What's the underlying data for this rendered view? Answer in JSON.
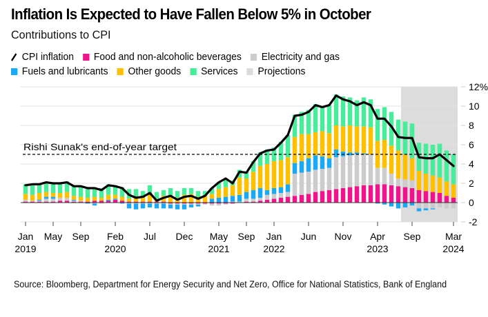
{
  "header": {
    "title": "Inflation Is Expected to Have Fallen Below 5% in October",
    "subtitle": "Contributions to CPI"
  },
  "legend": [
    {
      "key": "cpi",
      "label": "CPI inflation",
      "type": "line",
      "color": "#000000"
    },
    {
      "key": "food",
      "label": "Food and non-alcoholic beverages",
      "type": "box",
      "color": "#f0148c"
    },
    {
      "key": "elec",
      "label": "Electricity and gas",
      "type": "box",
      "color": "#cccccc"
    },
    {
      "key": "fuel",
      "label": "Fuels and lubricants",
      "type": "box",
      "color": "#1ba9f5"
    },
    {
      "key": "other",
      "label": "Other goods",
      "type": "box",
      "color": "#ffc000"
    },
    {
      "key": "services",
      "label": "Services",
      "type": "box",
      "color": "#49ec9a"
    },
    {
      "key": "proj",
      "label": "Projections",
      "type": "box",
      "color": "#dcdcdc"
    }
  ],
  "source": "Source: Bloomberg, Department for Energy Security and Net Zero, Office for National Statistics, Bank of England",
  "chart_data": {
    "type": "bar",
    "stacked": true,
    "title": "Inflation Is Expected to Have Fallen Below 5% in October",
    "subtitle": "Contributions to CPI",
    "xlabel": "",
    "ylabel": "",
    "ylim": [
      -2,
      12
    ],
    "y_ticks": [
      "12%",
      "10",
      "8",
      "6",
      "4",
      "2",
      "0",
      "-2"
    ],
    "y_tick_values": [
      12,
      10,
      8,
      6,
      4,
      2,
      0,
      -2
    ],
    "grid": true,
    "legend_position": "top-left",
    "x_ticks": [
      {
        "index": 0,
        "month": "Jan",
        "year": "2019"
      },
      {
        "index": 4,
        "month": "May",
        "year": ""
      },
      {
        "index": 8,
        "month": "Sep",
        "year": ""
      },
      {
        "index": 13,
        "month": "Feb",
        "year": "2020"
      },
      {
        "index": 18,
        "month": "Jul",
        "year": ""
      },
      {
        "index": 23,
        "month": "Dec",
        "year": ""
      },
      {
        "index": 28,
        "month": "May",
        "year": "2021"
      },
      {
        "index": 32,
        "month": "Sep",
        "year": ""
      },
      {
        "index": 36,
        "month": "Jan",
        "year": "2022"
      },
      {
        "index": 41,
        "month": "Jun",
        "year": ""
      },
      {
        "index": 46,
        "month": "Nov",
        "year": ""
      },
      {
        "index": 51,
        "month": "Apr",
        "year": "2023"
      },
      {
        "index": 56,
        "month": "Sep",
        "year": ""
      },
      {
        "index": 62,
        "month": "Mar",
        "year": "2024"
      }
    ],
    "categories": [
      "2019-01",
      "2019-02",
      "2019-03",
      "2019-04",
      "2019-05",
      "2019-06",
      "2019-07",
      "2019-08",
      "2019-09",
      "2019-10",
      "2019-11",
      "2019-12",
      "2020-01",
      "2020-02",
      "2020-03",
      "2020-04",
      "2020-05",
      "2020-06",
      "2020-07",
      "2020-08",
      "2020-09",
      "2020-10",
      "2020-11",
      "2020-12",
      "2021-01",
      "2021-02",
      "2021-03",
      "2021-04",
      "2021-05",
      "2021-06",
      "2021-07",
      "2021-08",
      "2021-09",
      "2021-10",
      "2021-11",
      "2021-12",
      "2022-01",
      "2022-02",
      "2022-03",
      "2022-04",
      "2022-05",
      "2022-06",
      "2022-07",
      "2022-08",
      "2022-09",
      "2022-10",
      "2022-11",
      "2022-12",
      "2023-01",
      "2023-02",
      "2023-03",
      "2023-04",
      "2023-05",
      "2023-06",
      "2023-07",
      "2023-08",
      "2023-09",
      "2023-10",
      "2023-11",
      "2023-12",
      "2024-01",
      "2024-02",
      "2024-03"
    ],
    "projection_start_index": 55,
    "target": {
      "label": "Rishi Sunak's end-of-year target",
      "value": 5
    },
    "line": {
      "name": "CPI inflation",
      "values": [
        1.8,
        1.9,
        1.9,
        2.1,
        2.0,
        2.0,
        2.1,
        1.7,
        1.7,
        1.5,
        1.5,
        1.3,
        1.8,
        1.7,
        1.5,
        0.8,
        0.5,
        0.6,
        1.0,
        0.2,
        0.5,
        0.7,
        0.3,
        0.6,
        0.7,
        0.4,
        0.7,
        1.5,
        2.1,
        2.5,
        2.0,
        3.2,
        3.1,
        4.2,
        5.1,
        5.4,
        5.5,
        6.2,
        7.0,
        9.0,
        9.1,
        9.4,
        10.1,
        9.9,
        10.1,
        11.1,
        10.7,
        10.5,
        10.1,
        10.4,
        10.1,
        8.7,
        8.7,
        7.9,
        6.8,
        6.7,
        6.7,
        4.7,
        4.6,
        4.6,
        5.0,
        4.4,
        3.8
      ]
    },
    "series": [
      {
        "name": "Food and non-alcoholic beverages",
        "values": [
          0.1,
          0.1,
          0.1,
          0.1,
          0.1,
          0.2,
          0.2,
          0.1,
          0.1,
          0.1,
          0.2,
          0.2,
          0.2,
          0.3,
          0.2,
          0.1,
          0.1,
          0.1,
          0.1,
          0.1,
          0.1,
          -0.1,
          -0.1,
          -0.1,
          -0.1,
          -0.1,
          -0.1,
          -0.1,
          -0.1,
          -0.1,
          -0.1,
          0.0,
          0.1,
          0.1,
          0.2,
          0.3,
          0.4,
          0.5,
          0.6,
          0.7,
          0.8,
          0.9,
          1.1,
          1.2,
          1.3,
          1.4,
          1.5,
          1.6,
          1.7,
          1.8,
          1.8,
          1.9,
          1.9,
          1.8,
          1.7,
          1.6,
          1.5,
          1.3,
          1.2,
          1.1,
          1.0,
          0.7,
          0.5
        ]
      },
      {
        "name": "Electricity and gas",
        "values": [
          0.2,
          0.1,
          0.1,
          0.3,
          0.3,
          0.3,
          0.3,
          0.1,
          0.1,
          0.0,
          -0.1,
          -0.1,
          0.0,
          0.0,
          0.0,
          -0.1,
          -0.1,
          -0.1,
          -0.1,
          -0.1,
          -0.1,
          -0.1,
          -0.1,
          -0.1,
          -0.1,
          -0.1,
          -0.1,
          -0.2,
          -0.2,
          -0.1,
          0.1,
          0.1,
          0.3,
          0.3,
          0.3,
          0.5,
          0.5,
          0.5,
          0.5,
          2.3,
          2.3,
          2.3,
          2.3,
          2.3,
          2.3,
          3.3,
          3.3,
          3.3,
          3.3,
          3.2,
          3.2,
          1.7,
          1.7,
          1.2,
          0.8,
          0.8,
          0.8,
          -0.6,
          -0.6,
          -0.6,
          -0.5,
          -0.6,
          -0.6
        ]
      },
      {
        "name": "Fuels and lubricants",
        "values": [
          0.0,
          0.0,
          0.1,
          0.2,
          0.2,
          0.0,
          0.0,
          0.1,
          0.0,
          -0.1,
          -0.2,
          0.0,
          0.1,
          0.1,
          -0.1,
          -0.5,
          -0.6,
          -0.5,
          -0.4,
          -0.5,
          -0.5,
          -0.4,
          -0.5,
          -0.5,
          -0.3,
          -0.2,
          0.0,
          0.4,
          0.5,
          0.6,
          0.6,
          0.7,
          0.7,
          0.9,
          1.0,
          0.5,
          0.6,
          0.6,
          0.8,
          1.1,
          1.2,
          1.4,
          1.5,
          1.3,
          1.0,
          0.8,
          0.5,
          0.3,
          0.2,
          0.1,
          0.0,
          -0.1,
          -0.2,
          -0.4,
          -0.6,
          -0.5,
          -0.3,
          -0.3,
          -0.2,
          -0.1,
          0.0,
          0.0,
          0.0
        ]
      },
      {
        "name": "Other goods",
        "values": [
          0.6,
          0.6,
          0.7,
          0.5,
          0.4,
          0.5,
          0.6,
          0.4,
          0.4,
          0.4,
          0.4,
          0.3,
          0.5,
          0.4,
          0.4,
          0.3,
          0.4,
          0.4,
          0.8,
          0.3,
          0.6,
          0.7,
          0.5,
          0.8,
          0.9,
          0.6,
          0.7,
          0.5,
          0.9,
          1.0,
          1.1,
          1.8,
          1.4,
          1.9,
          2.3,
          2.7,
          2.8,
          2.8,
          2.8,
          2.7,
          2.8,
          2.5,
          2.4,
          2.6,
          2.6,
          2.5,
          2.6,
          2.8,
          2.7,
          2.8,
          2.8,
          2.8,
          2.9,
          2.9,
          2.9,
          2.6,
          2.3,
          2.0,
          1.8,
          1.7,
          1.6,
          1.5,
          1.4
        ]
      },
      {
        "name": "Services",
        "values": [
          1.0,
          1.1,
          1.0,
          1.0,
          1.1,
          1.1,
          1.1,
          1.0,
          1.1,
          1.1,
          1.0,
          1.0,
          1.1,
          1.0,
          1.0,
          1.0,
          0.9,
          0.7,
          0.9,
          0.7,
          0.6,
          0.8,
          0.7,
          0.7,
          0.6,
          0.6,
          0.5,
          0.6,
          0.7,
          0.8,
          0.5,
          0.8,
          0.7,
          1.1,
          1.4,
          1.5,
          1.4,
          1.9,
          2.3,
          2.3,
          2.3,
          2.5,
          2.9,
          2.6,
          2.9,
          3.2,
          3.1,
          2.9,
          2.7,
          3.0,
          2.9,
          3.3,
          3.4,
          3.5,
          3.2,
          3.4,
          3.6,
          2.9,
          3.1,
          3.2,
          3.5,
          3.2,
          3.1
        ]
      }
    ]
  }
}
